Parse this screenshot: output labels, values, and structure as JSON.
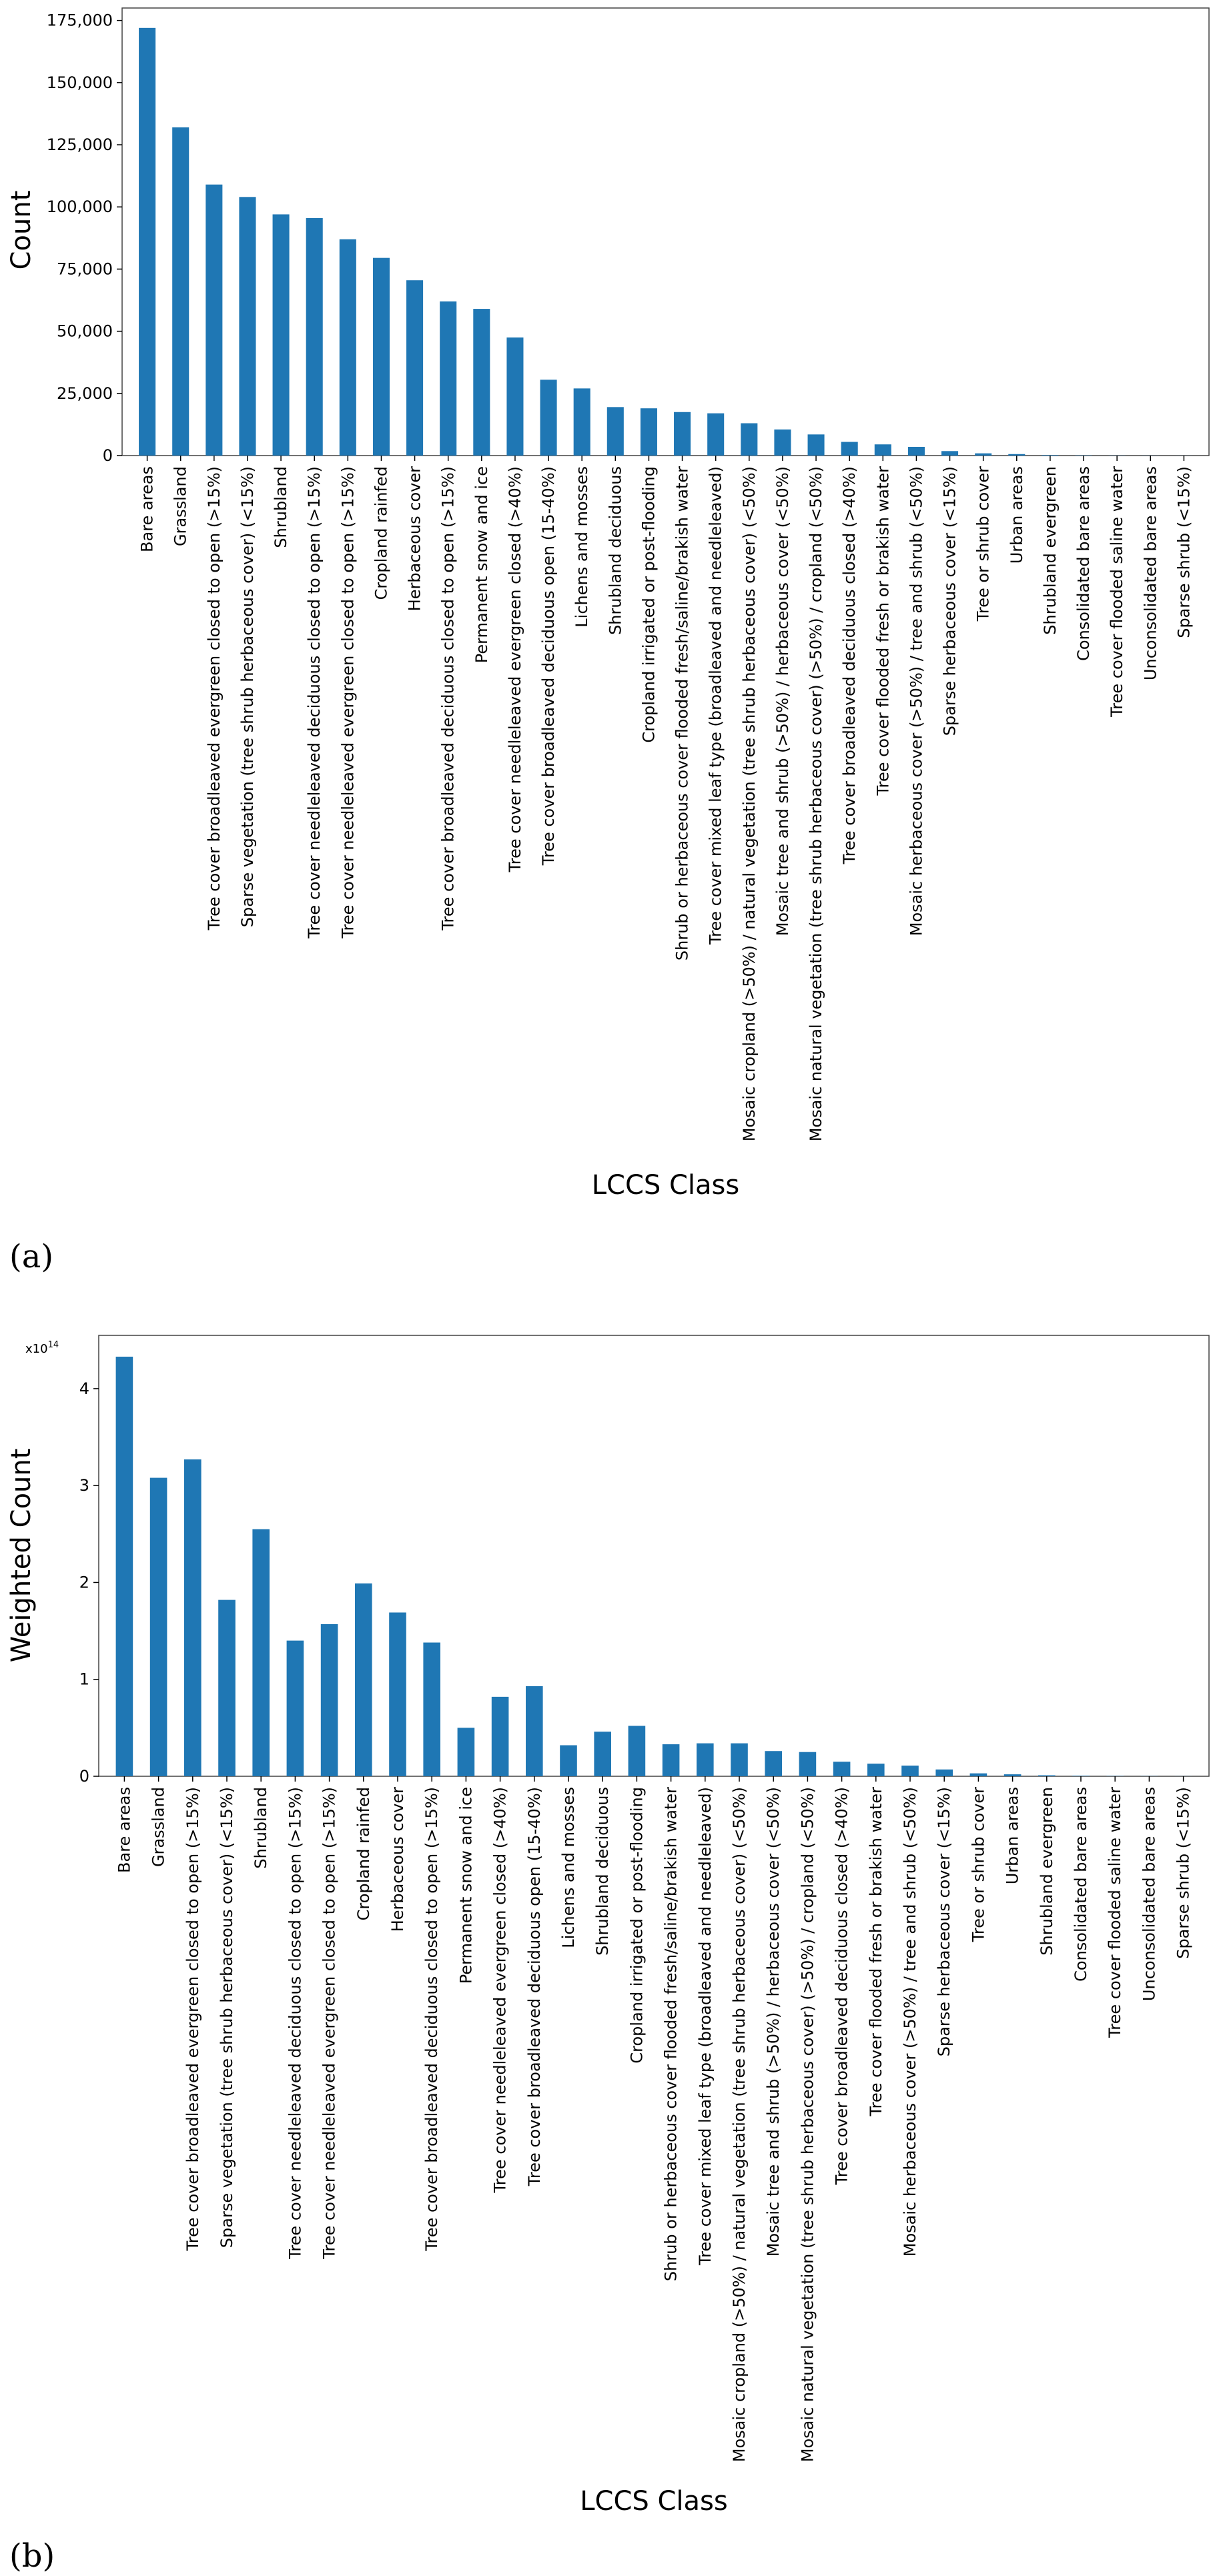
{
  "chart_data": [
    {
      "type": "bar",
      "panel_label": "(a)",
      "title": "",
      "xlabel": "LCCS Class",
      "ylabel": "Count",
      "ylim": [
        0,
        180000
      ],
      "yticks": [
        0,
        25000,
        50000,
        75000,
        100000,
        125000,
        150000,
        175000
      ],
      "ytick_labels": [
        "0",
        "25,000",
        "50,000",
        "75,000",
        "100,000",
        "125,000",
        "150,000",
        "175,000"
      ],
      "color": "#1f77b4",
      "categories": [
        "Bare areas",
        "Grassland",
        "Tree cover broadleaved evergreen closed to open (>15%)",
        "Sparse vegetation (tree shrub herbaceous cover) (<15%)",
        "Shrubland",
        "Tree cover needleleaved deciduous closed to open (>15%)",
        "Tree cover needleleaved evergreen closed to open (>15%)",
        "Cropland rainfed",
        "Herbaceous cover",
        "Tree cover broadleaved deciduous closed to open (>15%)",
        "Permanent snow and ice",
        "Tree cover needleleaved evergreen closed (>40%)",
        "Tree cover broadleaved deciduous open (15-40%)",
        "Lichens and mosses",
        "Shrubland deciduous",
        "Cropland irrigated or post-flooding",
        "Shrub or herbaceous cover flooded fresh/saline/brakish water",
        "Tree cover mixed leaf type (broadleaved and needleleaved)",
        "Mosaic cropland (>50%) / natural vegetation (tree shrub herbaceous cover) (<50%)",
        "Mosaic tree and shrub (>50%) / herbaceous cover (<50%)",
        "Mosaic natural vegetation (tree shrub herbaceous cover) (>50%) / cropland (<50%)",
        "Tree cover broadleaved deciduous closed (>40%)",
        "Tree cover flooded fresh or brakish water",
        "Mosaic herbaceous cover (>50%) / tree and shrub (<50%)",
        "Sparse herbaceous cover (<15%)",
        "Tree or shrub cover",
        "Urban areas",
        "Shrubland evergreen",
        "Consolidated bare areas",
        "Tree cover flooded saline water",
        "Unconsolidated bare areas",
        "Sparse shrub (<15%)"
      ],
      "values": [
        172000,
        132000,
        109000,
        104000,
        97000,
        95500,
        87000,
        79500,
        70500,
        62000,
        59000,
        47500,
        30500,
        27000,
        19500,
        19000,
        17500,
        17000,
        13000,
        10500,
        8500,
        5500,
        4500,
        3500,
        1800,
        900,
        600,
        200,
        100,
        50,
        30,
        20
      ]
    },
    {
      "type": "bar",
      "panel_label": "(b)",
      "title": "",
      "xlabel": "LCCS Class",
      "ylabel": "Weighted Count",
      "scale_label": "x10",
      "scale_exponent": "14",
      "ylim": [
        0,
        4.55
      ],
      "yticks": [
        0,
        1,
        2,
        3,
        4
      ],
      "ytick_labels": [
        "0",
        "1",
        "2",
        "3",
        "4"
      ],
      "color": "#1f77b4",
      "categories": [
        "Bare areas",
        "Grassland",
        "Tree cover broadleaved evergreen closed to open (>15%)",
        "Sparse vegetation (tree shrub herbaceous cover) (<15%)",
        "Shrubland",
        "Tree cover needleleaved deciduous closed to open (>15%)",
        "Tree cover needleleaved evergreen closed to open (>15%)",
        "Cropland rainfed",
        "Herbaceous cover",
        "Tree cover broadleaved deciduous closed to open (>15%)",
        "Permanent snow and ice",
        "Tree cover needleleaved evergreen closed (>40%)",
        "Tree cover broadleaved deciduous open (15-40%)",
        "Lichens and mosses",
        "Shrubland deciduous",
        "Cropland irrigated or post-flooding",
        "Shrub or herbaceous cover flooded fresh/saline/brakish water",
        "Tree cover mixed leaf type (broadleaved and needleleaved)",
        "Mosaic cropland (>50%) / natural vegetation (tree shrub herbaceous cover) (<50%)",
        "Mosaic tree and shrub (>50%) / herbaceous cover (<50%)",
        "Mosaic natural vegetation (tree shrub herbaceous cover) (>50%) / cropland (<50%)",
        "Tree cover broadleaved deciduous closed (>40%)",
        "Tree cover flooded fresh or brakish water",
        "Mosaic herbaceous cover (>50%) / tree and shrub (<50%)",
        "Sparse herbaceous cover (<15%)",
        "Tree or shrub cover",
        "Urban areas",
        "Shrubland evergreen",
        "Consolidated bare areas",
        "Tree cover flooded saline water",
        "Unconsolidated bare areas",
        "Sparse shrub (<15%)"
      ],
      "values": [
        4.33,
        3.08,
        3.27,
        1.82,
        2.55,
        1.4,
        1.57,
        1.99,
        1.69,
        1.38,
        0.5,
        0.82,
        0.93,
        0.32,
        0.46,
        0.52,
        0.33,
        0.34,
        0.34,
        0.26,
        0.25,
        0.15,
        0.13,
        0.11,
        0.07,
        0.03,
        0.02,
        0.01,
        0.005,
        0.003,
        0.002,
        0.001
      ]
    }
  ]
}
